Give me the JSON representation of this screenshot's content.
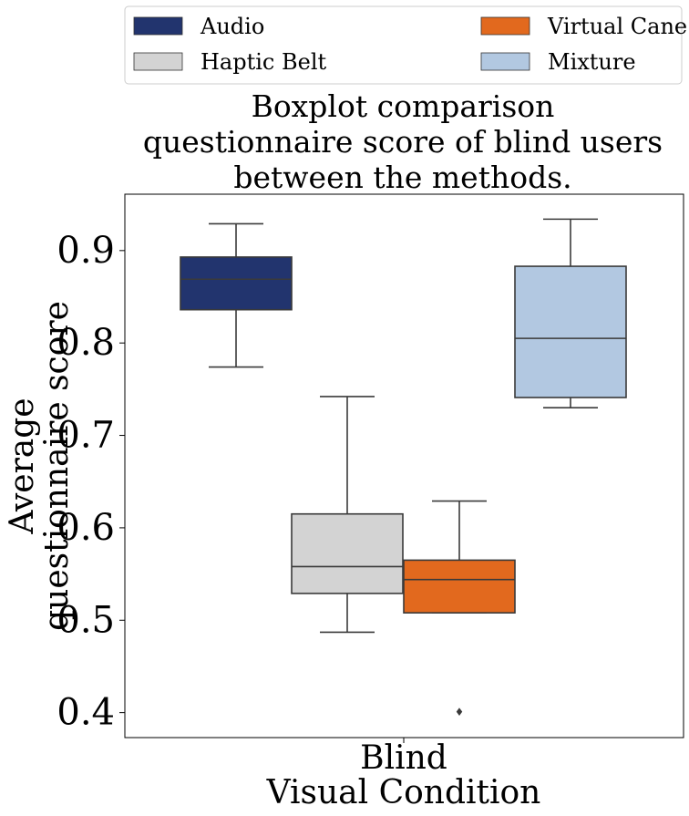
{
  "chart_data": {
    "type": "boxplot",
    "title_lines": [
      "Boxplot comparison",
      "questionnaire score of blind users",
      "between the methods."
    ],
    "xlabel": "Visual Condition",
    "ylabel_lines": [
      "Average",
      "questionnaire score"
    ],
    "categories": [
      "Blind"
    ],
    "ylim": [
      0.373,
      0.961
    ],
    "yticks": [
      0.4,
      0.5,
      0.6,
      0.7,
      0.8,
      0.9
    ],
    "ytick_labels": [
      "0.4",
      "0.5",
      "0.6",
      "0.7",
      "0.8",
      "0.9"
    ],
    "grid": false,
    "legend_position": "top",
    "series": [
      {
        "name": "Audio",
        "color": "#22346e",
        "whisker_low": 0.774,
        "q1": 0.836,
        "median": 0.869,
        "q3": 0.893,
        "whisker_high": 0.929,
        "outliers": []
      },
      {
        "name": "Haptic Belt",
        "color": "#d3d3d3",
        "whisker_low": 0.487,
        "q1": 0.529,
        "median": 0.558,
        "q3": 0.615,
        "whisker_high": 0.742,
        "outliers": []
      },
      {
        "name": "Virtual Cane",
        "color": "#e2691e",
        "whisker_low": 0.508,
        "q1": 0.508,
        "median": 0.544,
        "q3": 0.565,
        "whisker_high": 0.629,
        "outliers": [
          0.401
        ]
      },
      {
        "name": "Mixture",
        "color": "#b2c8e1",
        "whisker_low": 0.73,
        "q1": 0.741,
        "median": 0.805,
        "q3": 0.883,
        "whisker_high": 0.934,
        "outliers": []
      }
    ]
  }
}
